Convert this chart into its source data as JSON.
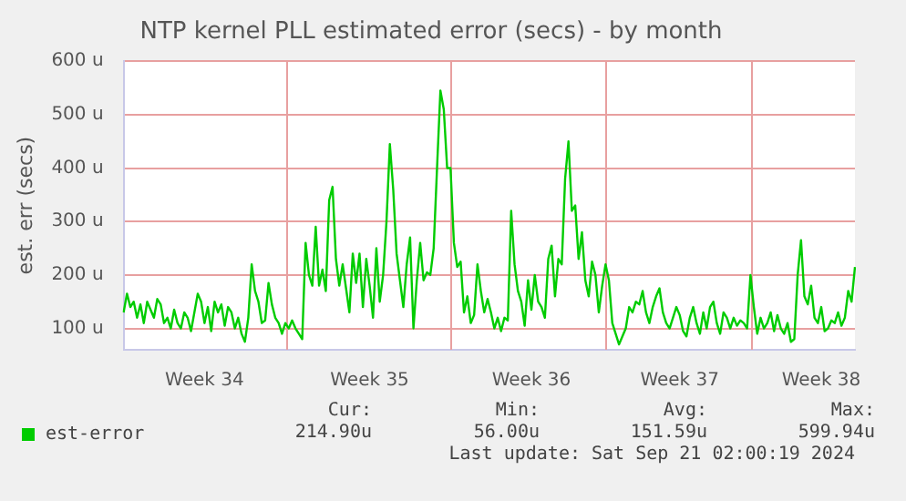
{
  "chart_data": {
    "type": "line",
    "title": "NTP kernel PLL estimated error (secs) - by month",
    "ylabel": "est. err (secs)",
    "categories": [
      null,
      null,
      null,
      null,
      null,
      null,
      null,
      null,
      null,
      null,
      null,
      null,
      null,
      null,
      null,
      null,
      null,
      null,
      null,
      null,
      null,
      null,
      null,
      null,
      "Week 34",
      null,
      null,
      null,
      null,
      null,
      null,
      null,
      null,
      null,
      null,
      null,
      null,
      null,
      null,
      null,
      null,
      null,
      null,
      null,
      null,
      null,
      null,
      null,
      null,
      null,
      null,
      null,
      null,
      null,
      null,
      null,
      null,
      null,
      null,
      null,
      null,
      null,
      null,
      null,
      null,
      null,
      null,
      null,
      null,
      null,
      null,
      null,
      null,
      "Week 35",
      null,
      null,
      null,
      null,
      null,
      null,
      null,
      null,
      null,
      null,
      null,
      null,
      null,
      null,
      null,
      null,
      null,
      null,
      null,
      null,
      null,
      null,
      null,
      null,
      null,
      null,
      null,
      null,
      null,
      null,
      null,
      null,
      null,
      null,
      null,
      null,
      null,
      null,
      null,
      null,
      null,
      null,
      null,
      null,
      null,
      null,
      null,
      "Week 36",
      null,
      null,
      null,
      null,
      null,
      null,
      null,
      null,
      null,
      null,
      null,
      null,
      null,
      null,
      null,
      null,
      null,
      null,
      null,
      null,
      null,
      null,
      null,
      null,
      null,
      null,
      null,
      null,
      null,
      null,
      null,
      null,
      null,
      null,
      null,
      null,
      null,
      null,
      null,
      null,
      null,
      null,
      null,
      "Week 37",
      null,
      null,
      null,
      null,
      null,
      null,
      null,
      null,
      null,
      null,
      null,
      null,
      null,
      null,
      null,
      null,
      null,
      null,
      null,
      null,
      null,
      null,
      null,
      null,
      null,
      null,
      null,
      null,
      null,
      null,
      null,
      null,
      null,
      null,
      null,
      null,
      null,
      null,
      null,
      null,
      null,
      "Week 38",
      null,
      null,
      null,
      null,
      null,
      null,
      null,
      null,
      null,
      null
    ],
    "ylim": [
      60,
      600
    ],
    "yticks": [
      {
        "value": 100,
        "label": "100 u"
      },
      {
        "value": 200,
        "label": "200 u"
      },
      {
        "value": 300,
        "label": "300 u"
      },
      {
        "value": 400,
        "label": "400 u"
      },
      {
        "value": 500,
        "label": "500 u"
      },
      {
        "value": 600,
        "label": "600 u"
      }
    ],
    "grid": true,
    "legend": "bottom left",
    "marker": "none",
    "line_style": "solid",
    "annotations": [
      "Cur:",
      "214.90u",
      "Min:",
      "56.00u",
      "Avg:",
      "151.59u",
      "Max:",
      "599.94u",
      "Last update: Sat Sep 21 02:00:19 2024"
    ],
    "series": [
      {
        "name": "est-error",
        "color": "#00cc00",
        "values": [
          130,
          165,
          140,
          150,
          120,
          145,
          110,
          150,
          135,
          120,
          155,
          145,
          110,
          120,
          100,
          135,
          110,
          100,
          130,
          120,
          95,
          130,
          165,
          150,
          110,
          140,
          95,
          150,
          130,
          145,
          105,
          140,
          130,
          100,
          120,
          90,
          75,
          120,
          220,
          170,
          150,
          110,
          115,
          185,
          145,
          120,
          110,
          90,
          110,
          100,
          115,
          100,
          90,
          80,
          260,
          200,
          180,
          290,
          180,
          210,
          170,
          340,
          365,
          230,
          180,
          220,
          175,
          130,
          240,
          185,
          240,
          140,
          230,
          180,
          120,
          250,
          150,
          200,
          300,
          445,
          360,
          240,
          190,
          140,
          220,
          270,
          100,
          190,
          260,
          190,
          205,
          200,
          250,
          400,
          545,
          510,
          400,
          400,
          260,
          215,
          225,
          130,
          160,
          110,
          125,
          220,
          170,
          130,
          155,
          130,
          100,
          120,
          95,
          120,
          115,
          320,
          220,
          170,
          150,
          105,
          190,
          135,
          200,
          150,
          140,
          120,
          230,
          255,
          160,
          230,
          220,
          380,
          450,
          320,
          330,
          230,
          280,
          190,
          160,
          225,
          200,
          130,
          180,
          220,
          190,
          110,
          90,
          70,
          85,
          100,
          140,
          130,
          150,
          145,
          170,
          130,
          110,
          140,
          160,
          175,
          130,
          110,
          100,
          120,
          140,
          125,
          95,
          85,
          120,
          140,
          110,
          90,
          130,
          100,
          140,
          150,
          110,
          90,
          130,
          120,
          100,
          120,
          105,
          115,
          110,
          100,
          200,
          140,
          90,
          120,
          100,
          110,
          130,
          95,
          125,
          100,
          90,
          110,
          75,
          80,
          200,
          265,
          160,
          145,
          180,
          120,
          110,
          140,
          95,
          100,
          115,
          110,
          130,
          105,
          120,
          170,
          150,
          215
        ]
      }
    ]
  }
}
